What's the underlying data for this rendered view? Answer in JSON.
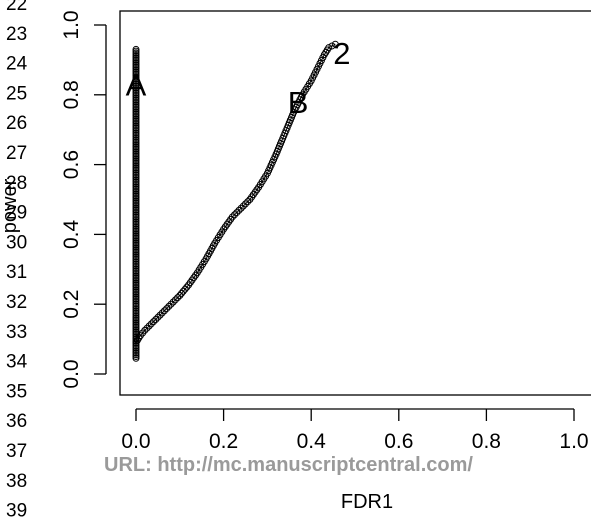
{
  "line_numbers": [
    "22",
    "23",
    "24",
    "25",
    "26",
    "27",
    "28",
    "29",
    "30",
    "31",
    "32",
    "33",
    "34",
    "35",
    "36",
    "37",
    "38",
    "39"
  ],
  "watermark": "URL: http://mc.manuscriptcentral.com/",
  "chart_data": {
    "type": "line",
    "xlabel": "FDR1",
    "ylabel": "power",
    "xlim": [
      0,
      1.0
    ],
    "ylim": [
      0,
      1.0
    ],
    "x_ticks": [
      "0.0",
      "0.2",
      "0.4",
      "0.6",
      "0.8",
      "1.0"
    ],
    "y_ticks": [
      "0.0",
      "0.2",
      "0.4",
      "0.6",
      "0.8",
      "1.0"
    ],
    "grid": false,
    "marker": "open-circle",
    "annotations": [
      {
        "label": "A",
        "x": 0.0,
        "y": 0.83
      },
      {
        "label": "B",
        "x": 0.37,
        "y": 0.78
      },
      {
        "label": "2",
        "x": 0.47,
        "y": 0.92
      }
    ],
    "series": [
      {
        "points_vertical_segment": {
          "x": 0.0,
          "y_start": 0.045,
          "y_end": 0.93,
          "step": 0.005
        },
        "curve": [
          [
            0.0,
            0.09
          ],
          [
            0.01,
            0.11
          ],
          [
            0.02,
            0.125
          ],
          [
            0.04,
            0.15
          ],
          [
            0.06,
            0.175
          ],
          [
            0.08,
            0.2
          ],
          [
            0.1,
            0.225
          ],
          [
            0.12,
            0.255
          ],
          [
            0.14,
            0.29
          ],
          [
            0.16,
            0.33
          ],
          [
            0.18,
            0.375
          ],
          [
            0.2,
            0.415
          ],
          [
            0.22,
            0.45
          ],
          [
            0.24,
            0.475
          ],
          [
            0.26,
            0.5
          ],
          [
            0.28,
            0.535
          ],
          [
            0.3,
            0.575
          ],
          [
            0.32,
            0.63
          ],
          [
            0.34,
            0.69
          ],
          [
            0.36,
            0.75
          ],
          [
            0.38,
            0.8
          ],
          [
            0.4,
            0.84
          ],
          [
            0.41,
            0.865
          ],
          [
            0.42,
            0.89
          ],
          [
            0.43,
            0.915
          ],
          [
            0.44,
            0.935
          ],
          [
            0.455,
            0.945
          ]
        ]
      }
    ]
  }
}
